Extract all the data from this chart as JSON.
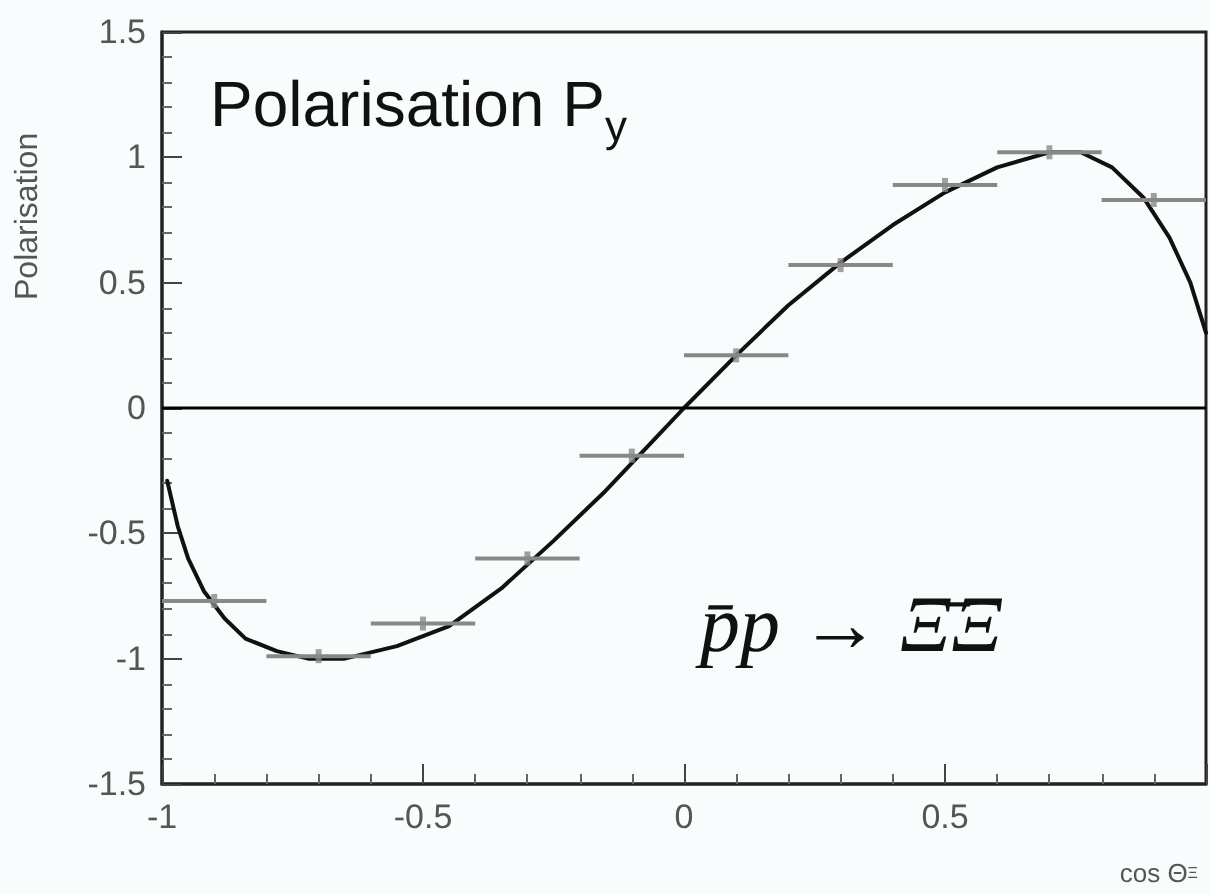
{
  "chart_data": {
    "type": "line",
    "title": "Polarisation P$_{y}$",
    "xlabel": "cos Θ$_{Ξ}$",
    "ylabel": "Polarisation",
    "annotations": [
      "p̄p → Ξ̄Ξ"
    ],
    "xlim": [
      -1,
      1
    ],
    "ylim": [
      -1.5,
      1.5
    ],
    "xticks": [
      -1,
      -0.5,
      0,
      0.5,
      {
        "value": 1,
        "label": null
      }
    ],
    "yticks": [
      -1.5,
      -1,
      -0.5,
      0,
      0.5,
      1,
      1.5
    ],
    "grid": false,
    "ref_lines": [
      {
        "axis": "y",
        "value": 0,
        "color": "#000000"
      }
    ],
    "series": [
      {
        "color": "#111111",
        "marker": "none",
        "line_style": "solid",
        "x": [
          -0.99,
          -0.97,
          -0.95,
          -0.92,
          -0.88,
          -0.84,
          -0.78,
          -0.72,
          -0.65,
          -0.55,
          -0.45,
          -0.35,
          -0.25,
          -0.15,
          -0.05,
          0,
          0.1,
          0.2,
          0.3,
          0.4,
          0.5,
          0.6,
          0.7,
          0.76,
          0.82,
          0.88,
          0.93,
          0.97,
          1.0
        ],
        "values": [
          -0.29,
          -0.47,
          -0.6,
          -0.73,
          -0.84,
          -0.92,
          -0.97,
          -1.0,
          -1.0,
          -0.95,
          -0.87,
          -0.72,
          -0.53,
          -0.33,
          -0.11,
          0,
          0.21,
          0.41,
          0.58,
          0.73,
          0.86,
          0.96,
          1.02,
          1.02,
          0.96,
          0.84,
          0.68,
          0.5,
          0.3
        ]
      },
      {
        "type": "scatter",
        "color": "#888888",
        "x": [
          -0.9,
          -0.7,
          -0.5,
          -0.3,
          -0.1,
          0.1,
          0.3,
          0.5,
          0.7,
          0.9
        ],
        "values": [
          -0.77,
          -0.99,
          -0.86,
          -0.6,
          -0.19,
          0.21,
          0.57,
          0.89,
          1.02,
          0.83
        ],
        "xerrors": [
          0.1,
          0.1,
          0.1,
          0.1,
          0.1,
          0.1,
          0.1,
          0.1,
          0.1,
          0.1
        ]
      }
    ]
  }
}
